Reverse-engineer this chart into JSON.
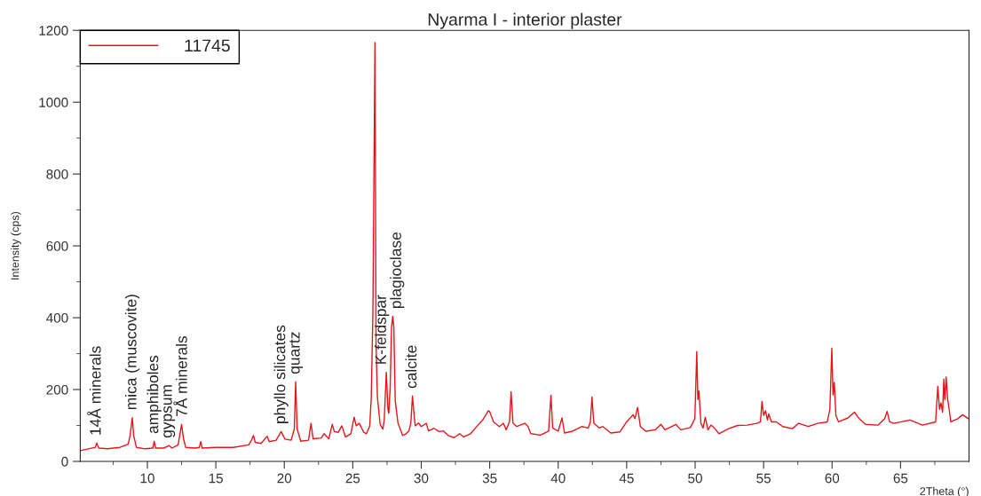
{
  "chart_data": {
    "type": "line",
    "title": "Nyarma I - interior plaster",
    "xlabel": "2Theta (°)",
    "ylabel": "Intensity (cps)",
    "xlim": [
      5.1,
      70
    ],
    "ylim": [
      0,
      1200
    ],
    "xticks": [
      {
        "value": 7.5,
        "label": null
      },
      10,
      {
        "value": 12.5,
        "label": null
      },
      15,
      {
        "value": 17.5,
        "label": null
      },
      20,
      {
        "value": 22.5,
        "label": null
      },
      25,
      {
        "value": 27.5,
        "label": null
      },
      30,
      {
        "value": 32.5,
        "label": null
      },
      35,
      {
        "value": 37.5,
        "label": null
      },
      40,
      {
        "value": 42.5,
        "label": null
      },
      45,
      {
        "value": 47.5,
        "label": null
      },
      50,
      {
        "value": 52.5,
        "label": null
      },
      55,
      {
        "value": 57.5,
        "label": null
      },
      60,
      {
        "value": 62.5,
        "label": null
      },
      65,
      {
        "value": 67.5,
        "label": null
      }
    ],
    "yticks": [
      0,
      {
        "value": 100,
        "label": null
      },
      200,
      {
        "value": 300,
        "label": null
      },
      400,
      {
        "value": 500,
        "label": null
      },
      600,
      {
        "value": 700,
        "label": null
      },
      800,
      {
        "value": 900,
        "label": null
      },
      1000,
      {
        "value": 1100,
        "label": null
      },
      1200
    ],
    "grid": false,
    "legend": "top left",
    "marker": "none",
    "line_style": "solid",
    "series": [
      {
        "name": "11745",
        "color": "#e8141c",
        "x": [
          5.1,
          5.7,
          6.2,
          6.3,
          6.45,
          7.1,
          8.0,
          8.6,
          8.74,
          8.9,
          9.0,
          9.2,
          9.85,
          10.4,
          10.5,
          10.6,
          11.2,
          11.6,
          11.8,
          12.25,
          12.36,
          12.5,
          12.64,
          12.8,
          13.5,
          13.8,
          13.9,
          14.0,
          15.0,
          16.26,
          17.4,
          17.6,
          17.75,
          17.87,
          18.3,
          18.75,
          18.9,
          19.4,
          19.77,
          20.05,
          20.5,
          20.73,
          20.83,
          20.94,
          21.2,
          21.77,
          21.95,
          22.1,
          22.7,
          22.9,
          23.25,
          23.5,
          23.65,
          23.95,
          24.2,
          24.47,
          24.86,
          25.1,
          25.25,
          25.48,
          25.8,
          26.0,
          26.24,
          26.35,
          26.47,
          26.62,
          26.7,
          26.8,
          27.0,
          27.2,
          27.3,
          27.45,
          27.57,
          27.63,
          27.73,
          27.83,
          27.92,
          28.0,
          28.1,
          28.3,
          28.64,
          28.9,
          29.1,
          29.24,
          29.36,
          29.47,
          29.56,
          29.8,
          30.0,
          30.37,
          30.53,
          30.94,
          31.3,
          31.6,
          31.97,
          32.4,
          32.8,
          33.1,
          33.6,
          34.1,
          34.5,
          34.9,
          35.0,
          35.28,
          35.7,
          36.0,
          36.2,
          36.44,
          36.56,
          36.7,
          36.98,
          37.56,
          37.8,
          38.0,
          38.7,
          39.3,
          39.47,
          39.6,
          40.0,
          40.28,
          40.46,
          41.05,
          41.74,
          42.2,
          42.35,
          42.47,
          42.6,
          43.0,
          43.26,
          43.84,
          44.5,
          45.0,
          45.47,
          45.6,
          45.8,
          46.0,
          46.4,
          47.1,
          47.5,
          47.8,
          48.6,
          48.95,
          49.65,
          49.98,
          50.12,
          50.2,
          50.28,
          50.42,
          50.58,
          50.74,
          50.93,
          51.16,
          51.4,
          51.74,
          52.44,
          53.1,
          53.8,
          54.5,
          54.77,
          54.88,
          55.0,
          55.14,
          55.28,
          55.37,
          55.58,
          55.93,
          56.4,
          57.1,
          57.56,
          58.26,
          58.95,
          59.65,
          59.84,
          59.98,
          60.07,
          60.16,
          60.28,
          60.47,
          61.16,
          61.63,
          61.98,
          62.44,
          63.37,
          63.84,
          64.02,
          64.2,
          64.5,
          65.7,
          66.6,
          67.56,
          67.72,
          67.84,
          67.95,
          68.07,
          68.16,
          68.23,
          68.33,
          68.44,
          68.53,
          68.67,
          69.19,
          69.53,
          69.95
        ],
        "values": [
          30,
          35,
          39,
          51,
          37,
          35,
          39,
          48,
          72,
          122,
          72,
          39,
          35,
          37,
          56,
          37,
          37,
          44,
          37,
          46,
          72,
          103,
          63,
          39,
          37,
          39,
          55,
          37,
          39,
          39,
          46,
          59,
          72,
          53,
          50,
          70,
          55,
          59,
          83,
          62,
          59,
          90,
          222,
          90,
          56,
          59,
          106,
          63,
          65,
          77,
          63,
          103,
          83,
          81,
          99,
          68,
          77,
          123,
          99,
          106,
          81,
          77,
          99,
          178,
          416,
          1166,
          328,
          178,
          103,
          90,
          116,
          248,
          143,
          134,
          204,
          372,
          404,
          372,
          169,
          107,
          72,
          77,
          85,
          107,
          182,
          134,
          99,
          107,
          97,
          106,
          85,
          92,
          83,
          85,
          72,
          66,
          77,
          68,
          77,
          99,
          116,
          141,
          138,
          110,
          97,
          106,
          88,
          110,
          194,
          106,
          97,
          106,
          97,
          77,
          73,
          84,
          184,
          93,
          84,
          121,
          79,
          84,
          97,
          93,
          110,
          179,
          106,
          93,
          97,
          79,
          82,
          110,
          130,
          119,
          150,
          97,
          84,
          88,
          103,
          88,
          103,
          88,
          94,
          119,
          306,
          172,
          196,
          106,
          93,
          123,
          88,
          101,
          93,
          77,
          91,
          100,
          101,
          106,
          110,
          167,
          128,
          141,
          115,
          132,
          110,
          110,
          97,
          91,
          106,
          97,
          106,
          110,
          145,
          315,
          185,
          220,
          128,
          110,
          121,
          137,
          119,
          103,
          101,
          119,
          139,
          110,
          106,
          115,
          101,
          110,
          209,
          145,
          163,
          137,
          229,
          172,
          235,
          172,
          150,
          110,
          119,
          130,
          119
        ]
      }
    ],
    "annotations": [
      {
        "text": "14Å minerals",
        "x": 6.3,
        "y": 51
      },
      {
        "text": "mica (muscovite)",
        "x": 8.9,
        "y": 122
      },
      {
        "text": "amphiboles",
        "x": 10.5,
        "y": 56
      },
      {
        "text": "gypsum",
        "x": 11.6,
        "y": 44
      },
      {
        "text": "7Å minerals",
        "x": 12.5,
        "y": 103
      },
      {
        "text": "phyllo silicates",
        "x": 19.77,
        "y": 83
      },
      {
        "text": "quartz",
        "x": 20.83,
        "y": 222
      },
      {
        "text": "K-feldspar",
        "x": 27.45,
        "y": 248
      },
      {
        "text": "plagioclase",
        "x": 27.92,
        "y": 404
      },
      {
        "text": "calcite",
        "x": 29.36,
        "y": 182
      }
    ]
  }
}
